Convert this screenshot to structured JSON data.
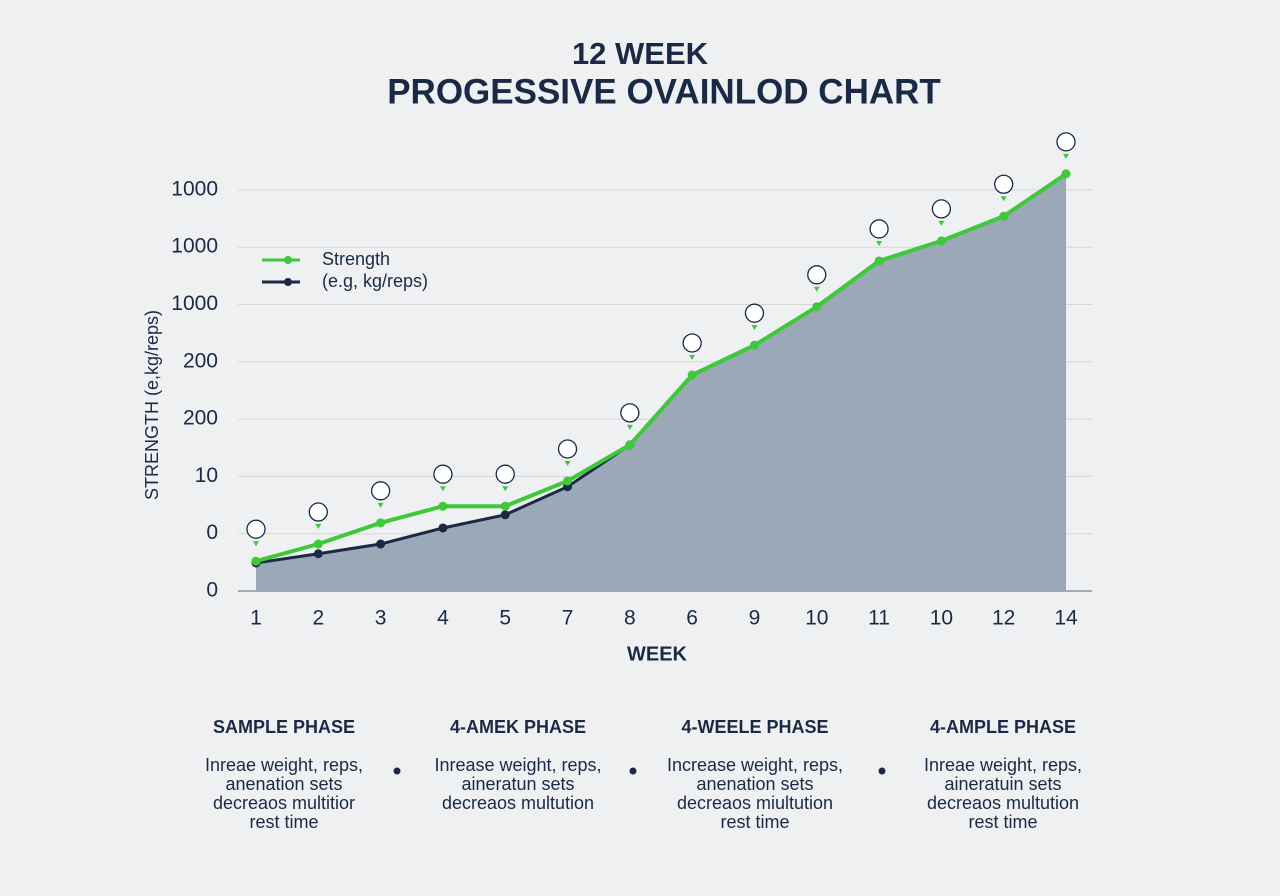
{
  "chart_data": {
    "type": "line",
    "title": [
      "12 WEEK",
      "PROGESSIVE OVAINLOD CHART"
    ],
    "y_label": "STRENGTH (e,kg/reps)",
    "x_label": "WEEK",
    "categories": [
      "1",
      "2",
      "3",
      "4",
      "5",
      "7",
      "8",
      "6",
      "9",
      "10",
      "11",
      "10",
      "12",
      "14"
    ],
    "series": [
      {
        "name": "Strength",
        "color": "#3ec83a",
        "values": [
          0.52,
          0.82,
          1.19,
          1.48,
          1.48,
          1.92,
          2.55,
          3.77,
          4.29,
          4.96,
          5.76,
          6.11,
          6.54,
          7.28
        ]
      },
      {
        "name": "(e.g, kg/reps)",
        "color": "#1b2a44",
        "values": [
          0.49,
          0.65,
          0.82,
          1.1,
          1.33,
          1.82,
          2.55,
          null,
          null,
          null,
          null,
          null,
          null,
          null
        ]
      }
    ],
    "area_color": "#9aa8b8",
    "ylim": [
      0,
      7.5
    ],
    "yticks": [
      0,
      1,
      2,
      3,
      4,
      5,
      6,
      7
    ],
    "y_tick_labels": [
      "0",
      "0",
      "10",
      "200",
      "200",
      "1000",
      "1000",
      "1000"
    ],
    "grid": true,
    "legend": "top-left"
  },
  "phases": [
    {
      "title": "SAMPLE PHASE",
      "lines": [
        "Inreae weight, reps,",
        "anenation sets",
        "decreaos multitior",
        "rest time"
      ]
    },
    {
      "title": "4-AMEK PHASE",
      "lines": [
        "Inrease weight, reps,",
        "aineratun sets",
        "decreaos multution"
      ]
    },
    {
      "title": "4-WEELE PHASE",
      "lines": [
        "Increase weight, reps,",
        "anenation sets",
        "decreaos miultution",
        "rest time"
      ]
    },
    {
      "title": "4-AMPLE PHASE",
      "lines": [
        "Inreae weight, reps,",
        "aineratuin sets",
        "decreaos multution",
        "rest time"
      ]
    }
  ]
}
